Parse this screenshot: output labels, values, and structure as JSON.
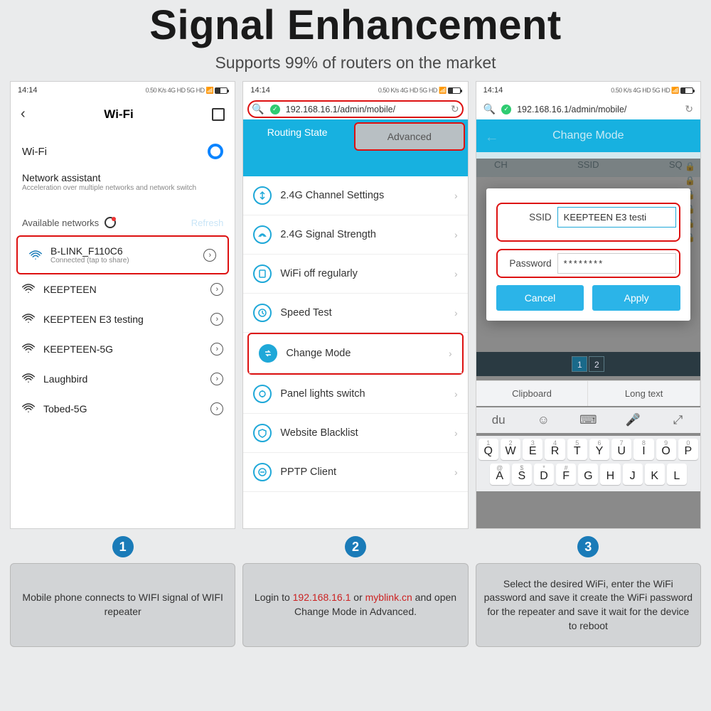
{
  "header": {
    "title": "Signal Enhancement",
    "subtitle": "Supports 99% of routers on the market"
  },
  "statusbar": {
    "time": "14:14",
    "indicators": "0.50 K/s  4G HD 5G HD",
    "battery": "20"
  },
  "screen1": {
    "title": "Wi-Fi",
    "wifi_label": "Wi-Fi",
    "assistant_title": "Network assistant",
    "assistant_sub": "Acceleration over multiple networks and network switch",
    "available_label": "Available networks",
    "refresh": "Refresh",
    "connected": {
      "name": "B-LINK_F110C6",
      "sub": "Connected (tap to share)"
    },
    "networks": [
      {
        "name": "KEEPTEEN"
      },
      {
        "name": "KEEPTEEN E3 testing"
      },
      {
        "name": "KEEPTEEN-5G"
      },
      {
        "name": "Laughbird"
      },
      {
        "name": "Tobed-5G"
      }
    ]
  },
  "screen2": {
    "url": "192.168.16.1/admin/mobile/",
    "tabs": {
      "routing": "Routing State",
      "advanced": "Advanced"
    },
    "menu": [
      {
        "label": "2.4G Channel Settings"
      },
      {
        "label": "2.4G Signal Strength"
      },
      {
        "label": "WiFi off regularly"
      },
      {
        "label": "Speed Test"
      },
      {
        "label": "Change Mode",
        "highlight": true
      },
      {
        "label": "Panel lights switch"
      },
      {
        "label": "Website Blacklist"
      },
      {
        "label": "PPTP Client"
      }
    ]
  },
  "screen3": {
    "url": "192.168.16.1/admin/mobile/",
    "header": "Change Mode",
    "cols": {
      "ch": "CH",
      "ssid": "SSID",
      "sq": "SQ"
    },
    "ssid_label": "SSID",
    "ssid_value": "KEEPTEEN E3 testi",
    "pw_label": "Password",
    "pw_value": "********",
    "cancel": "Cancel",
    "apply": "Apply",
    "page1": "1",
    "page2": "2",
    "clipboard": "Clipboard",
    "longtext": "Long text",
    "keyboard": {
      "row1": [
        {
          "n": "1",
          "c": "Q"
        },
        {
          "n": "2",
          "c": "W"
        },
        {
          "n": "3",
          "c": "E"
        },
        {
          "n": "4",
          "c": "R"
        },
        {
          "n": "5",
          "c": "T"
        },
        {
          "n": "6",
          "c": "Y"
        },
        {
          "n": "7",
          "c": "U"
        },
        {
          "n": "8",
          "c": "I"
        },
        {
          "n": "9",
          "c": "O"
        },
        {
          "n": "0",
          "c": "P"
        }
      ],
      "row2": [
        {
          "n": "@",
          "c": "A"
        },
        {
          "n": "$",
          "c": "S"
        },
        {
          "n": "*",
          "c": "D"
        },
        {
          "n": "#",
          "c": "F"
        },
        {
          "n": "",
          "c": "G"
        },
        {
          "n": "",
          "c": "H"
        },
        {
          "n": "",
          "c": "J"
        },
        {
          "n": "",
          "c": "K"
        },
        {
          "n": "",
          "c": "L"
        }
      ]
    }
  },
  "steps": {
    "s1": "Mobile phone connects to WIFI signal of WIFI repeater",
    "s2_pre": "Login to ",
    "s2_ip": "192.168.16.1",
    "s2_or": " or ",
    "s2_domain": "myblink.cn",
    "s2_post": " and open Change Mode in Advanced.",
    "s3": "Select the desired WiFi, enter the WiFi password and save it create the WiFi password for the repeater and save it wait for the device to reboot",
    "n1": "1",
    "n2": "2",
    "n3": "3"
  },
  "colors": {
    "bg": "#eaebec",
    "accent": "#17b1e0",
    "accent_dark": "#1fa8d8",
    "highlight": "#d11",
    "step_badge": "#1a7bb8",
    "step_box": "#d2d4d6"
  }
}
